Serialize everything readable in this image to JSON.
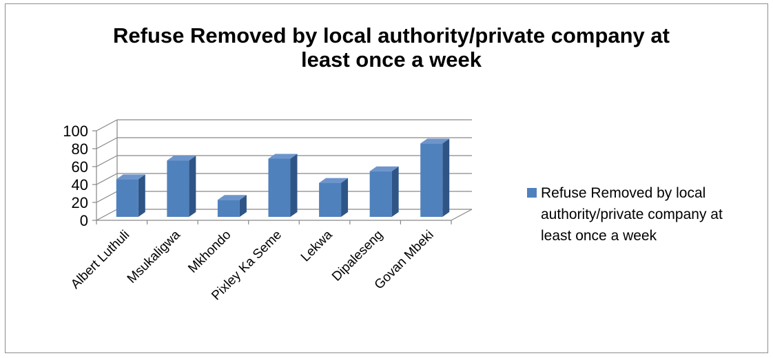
{
  "chart_data": {
    "type": "bar",
    "title": "Refuse Removed by local authority/private company at least once a week",
    "categories": [
      "Albert Luthuli",
      "Msukaligwa",
      "Mkhondo",
      "Pixley Ka Seme",
      "Lekwa",
      "Dipaleseng",
      "Govan Mbeki"
    ],
    "series": [
      {
        "name": "Refuse Removed by local authority/private company at least once a week",
        "values": [
          42,
          63,
          19,
          65,
          38,
          51,
          82
        ]
      }
    ],
    "ylim": [
      0,
      100
    ],
    "yticks": [
      "0",
      "20",
      "40",
      "60",
      "80",
      "100"
    ],
    "xlabel": "",
    "ylabel": "",
    "grid": true,
    "legend": "right",
    "style": "3d-column",
    "colors": {
      "bar_front": "#4f81bd",
      "bar_side": "#2f5587",
      "bar_top": "#6d95cc",
      "grid": "#868686"
    }
  }
}
